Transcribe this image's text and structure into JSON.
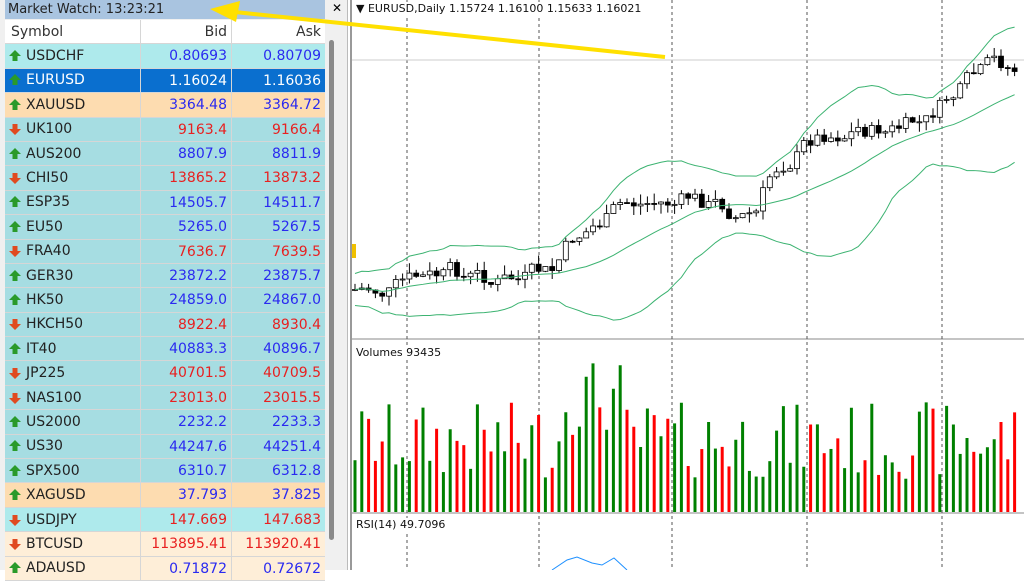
{
  "market_watch": {
    "title": "Market Watch: 13:23:21",
    "close_icon": "close-icon",
    "columns": [
      "Symbol",
      "Bid",
      "Ask"
    ],
    "rows": [
      {
        "symbol": "USDCHF",
        "bid": "0.80693",
        "ask": "0.80709",
        "dir": "up",
        "bg": "#aeeaec"
      },
      {
        "symbol": "EURUSD",
        "bid": "1.16024",
        "ask": "1.16036",
        "dir": "up",
        "bg": "#0a6fcf",
        "selected": true
      },
      {
        "symbol": "XAUUSD",
        "bid": "3364.48",
        "ask": "3364.72",
        "dir": "up",
        "bg": "#fddcb0"
      },
      {
        "symbol": "UK100",
        "bid": "9163.4",
        "ask": "9166.4",
        "dir": "down",
        "bg": "#a6dde2"
      },
      {
        "symbol": "AUS200",
        "bid": "8807.9",
        "ask": "8811.9",
        "dir": "up",
        "bg": "#a6dde2"
      },
      {
        "symbol": "CHI50",
        "bid": "13865.2",
        "ask": "13873.2",
        "dir": "down",
        "bg": "#a6dde2"
      },
      {
        "symbol": "ESP35",
        "bid": "14505.7",
        "ask": "14511.7",
        "dir": "up",
        "bg": "#a6dde2"
      },
      {
        "symbol": "EU50",
        "bid": "5265.0",
        "ask": "5267.5",
        "dir": "up",
        "bg": "#a6dde2"
      },
      {
        "symbol": "FRA40",
        "bid": "7636.7",
        "ask": "7639.5",
        "dir": "down",
        "bg": "#a6dde2"
      },
      {
        "symbol": "GER30",
        "bid": "23872.2",
        "ask": "23875.7",
        "dir": "up",
        "bg": "#a6dde2"
      },
      {
        "symbol": "HK50",
        "bid": "24859.0",
        "ask": "24867.0",
        "dir": "up",
        "bg": "#a6dde2"
      },
      {
        "symbol": "HKCH50",
        "bid": "8922.4",
        "ask": "8930.4",
        "dir": "down",
        "bg": "#a6dde2"
      },
      {
        "symbol": "IT40",
        "bid": "40883.3",
        "ask": "40896.7",
        "dir": "up",
        "bg": "#a6dde2"
      },
      {
        "symbol": "JP225",
        "bid": "40701.5",
        "ask": "40709.5",
        "dir": "down",
        "bg": "#a6dde2"
      },
      {
        "symbol": "NAS100",
        "bid": "23013.0",
        "ask": "23015.5",
        "dir": "down",
        "bg": "#a6dde2"
      },
      {
        "symbol": "US2000",
        "bid": "2232.2",
        "ask": "2233.3",
        "dir": "up",
        "bg": "#a6dde2"
      },
      {
        "symbol": "US30",
        "bid": "44247.6",
        "ask": "44251.4",
        "dir": "up",
        "bg": "#a6dde2"
      },
      {
        "symbol": "SPX500",
        "bid": "6310.7",
        "ask": "6312.8",
        "dir": "up",
        "bg": "#a6dde2"
      },
      {
        "symbol": "XAGUSD",
        "bid": "37.793",
        "ask": "37.825",
        "dir": "up",
        "bg": "#fddcb0"
      },
      {
        "symbol": "USDJPY",
        "bid": "147.669",
        "ask": "147.683",
        "dir": "down",
        "bg": "#aeeaec"
      },
      {
        "symbol": "BTCUSD",
        "bid": "113895.41",
        "ask": "113920.41",
        "dir": "down",
        "bg": "#feeed8"
      },
      {
        "symbol": "ADAUSD",
        "bid": "0.71872",
        "ask": "0.72672",
        "dir": "up",
        "bg": "#feeed8"
      }
    ]
  },
  "chart": {
    "header": "EURUSD,Daily  1.15724 1.16100 1.15633 1.16021",
    "volumes_label": "Volumes 93435",
    "rsi_label": "RSI(14) 49.7096",
    "colors": {
      "bull_volume": "#008000",
      "bear_volume": "#ff0000",
      "bands": "#3cb371",
      "rsi": "#1e90ff",
      "annotation_arrow": "#ffe000"
    }
  }
}
